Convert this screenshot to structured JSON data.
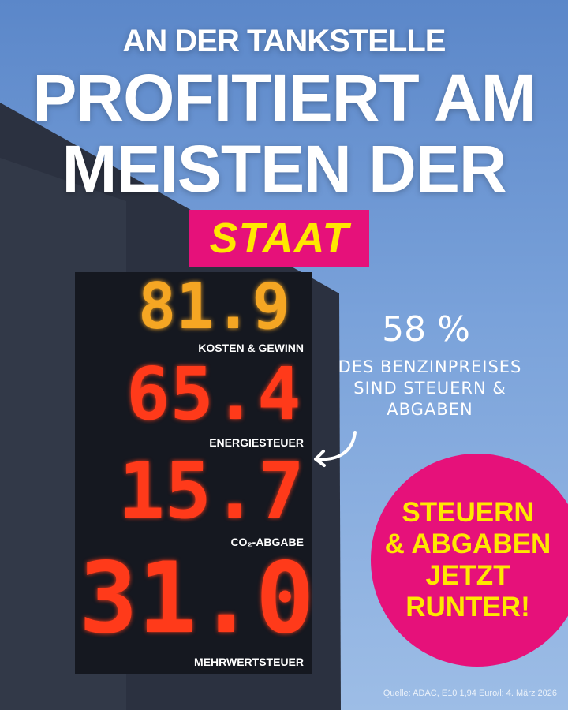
{
  "headline": {
    "line1": "AN DER TANKSTELLE",
    "line2": "PROFITIERT AM",
    "line3": "MEISTEN DER",
    "highlight": "STAAT"
  },
  "price_sign": [
    {
      "value": "81.9",
      "label": "KOSTEN & GEWINN",
      "color": "#f5a623"
    },
    {
      "value": "65.4",
      "label": "ENERGIESTEUER",
      "color": "#ff3a1a"
    },
    {
      "value": "15.7",
      "label": "CO₂-ABGABE",
      "color": "#ff3a1a"
    },
    {
      "value": "31.0",
      "label": "MEHRWERTSTEUER",
      "color": "#ff3a1a"
    }
  ],
  "annotation": {
    "percent": "58 %",
    "line1": "DES BENZINPREISES",
    "line2": "SIND STEUERN &",
    "line3": "ABGABEN",
    "arrow_icon": "curved-arrow-left-icon"
  },
  "callout": {
    "line1": "STEUERN",
    "line2": "& ABGABEN",
    "line3": "JETZT",
    "line4": "RUNTER!"
  },
  "source": "Quelle: ADAC, E10 1,94 Euro/l; 4. März 2026",
  "colors": {
    "pink": "#e6117a",
    "yellow": "#ffe800",
    "sky": "#7aa2da"
  }
}
